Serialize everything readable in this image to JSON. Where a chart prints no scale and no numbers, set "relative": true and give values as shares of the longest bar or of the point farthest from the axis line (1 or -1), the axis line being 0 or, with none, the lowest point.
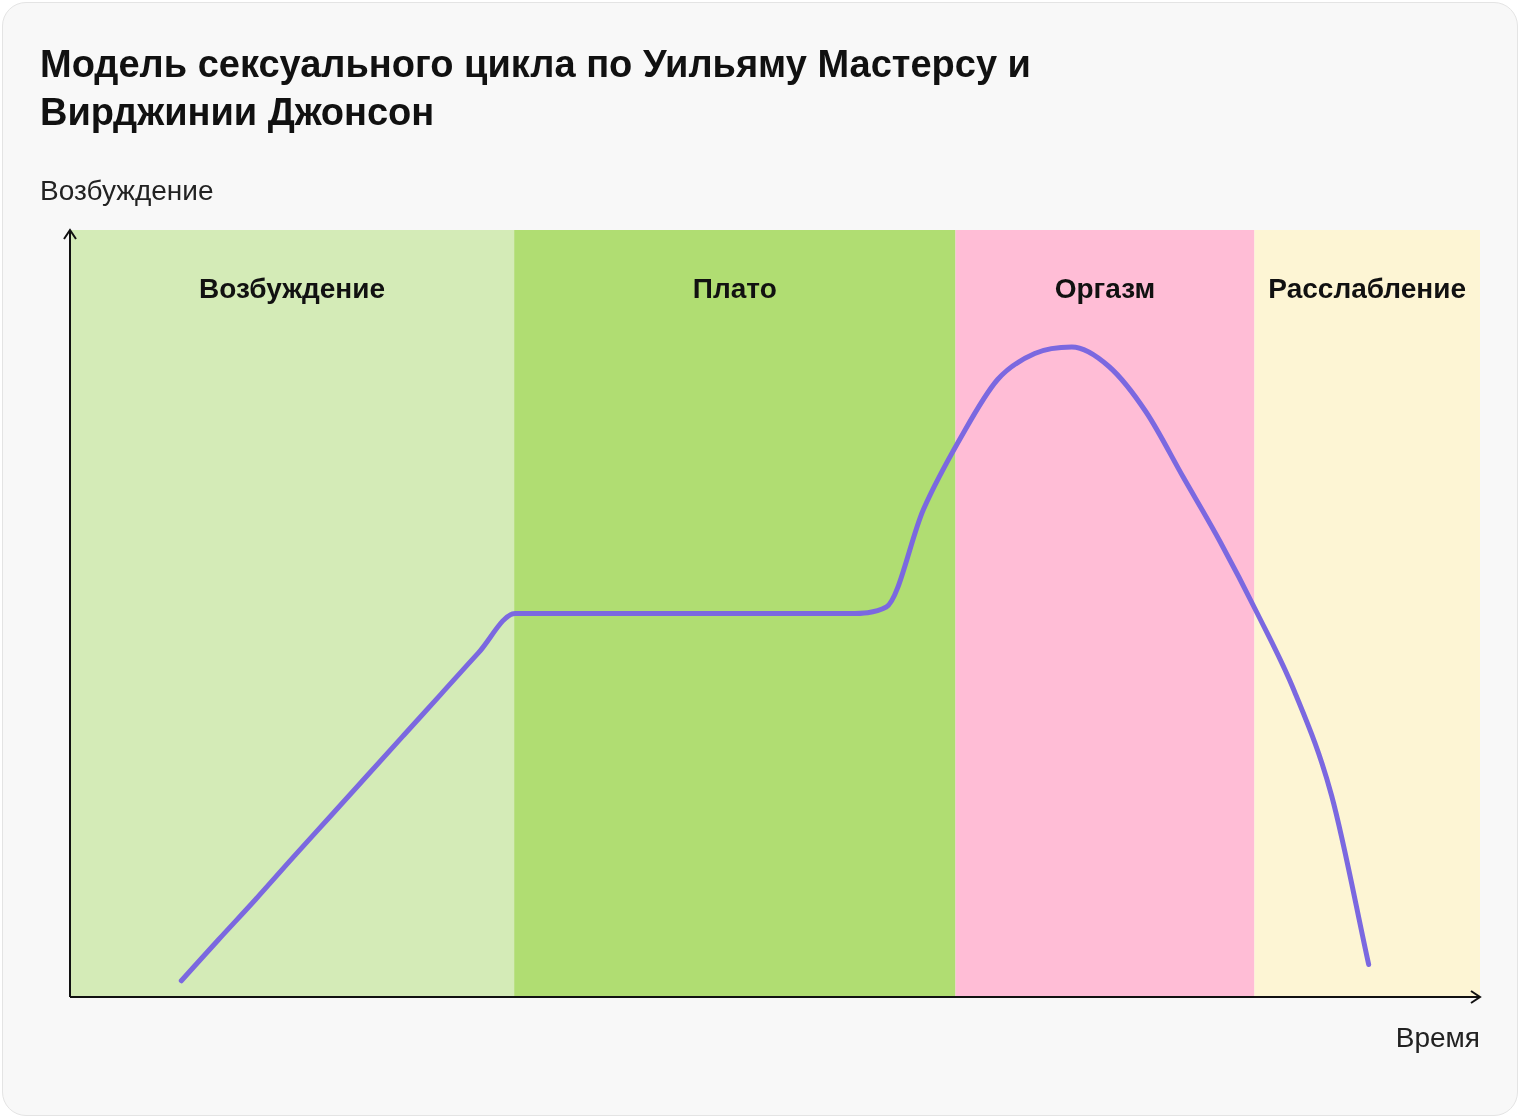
{
  "chart_data": {
    "type": "line",
    "title": "Модель сексуального цикла по Уильяму Мастерсу и Вирджинии Джонсон",
    "xlabel": "Время",
    "relative": true,
    "tick_labels": false,
    "annotations": [
      "Возбуждение",
      "Возбуждение",
      "Плато",
      "Оргазм",
      "Расслабление"
    ],
    "categories": [
      null,
      null,
      null,
      null,
      null,
      null,
      null,
      null,
      null,
      null,
      null,
      null,
      null,
      null,
      null,
      null,
      null,
      null,
      null,
      null,
      null,
      null,
      null,
      null,
      null,
      null,
      null,
      null,
      null,
      null,
      null,
      null,
      null,
      null,
      null,
      null,
      null,
      null,
      null
    ],
    "series": [
      {
        "color": "#7b68e0",
        "values": [
          null,
          null,
          null,
          0.025,
          0.088,
          0.15,
          0.214,
          0.277,
          0.34,
          0.403,
          0.466,
          0.529,
          0.59,
          0.59,
          0.59,
          0.59,
          0.59,
          0.59,
          0.59,
          0.59,
          0.59,
          0.59,
          0.6,
          0.75,
          0.86,
          0.95,
          0.99,
          1.0,
          0.97,
          0.9,
          0.8,
          0.7,
          0.59,
          0.47,
          0.31,
          0.05,
          null,
          null,
          null
        ]
      }
    ]
  }
}
